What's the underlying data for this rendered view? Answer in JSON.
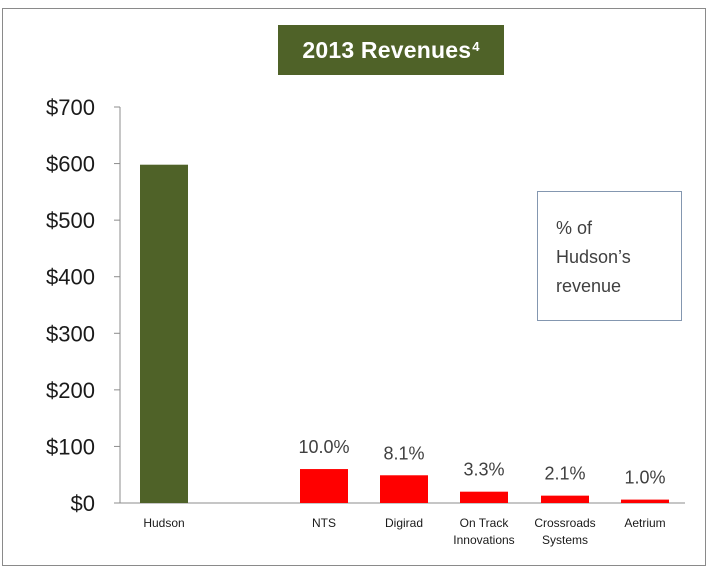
{
  "chart_data": {
    "type": "bar",
    "title": "2013 Revenues",
    "title_superscript": "4",
    "categories": [
      "Hudson",
      "NTS",
      "Digirad",
      "On Track Innovations",
      "Crossroads Systems",
      "Aetrium"
    ],
    "category_lines": [
      [
        "Hudson"
      ],
      [
        "NTS"
      ],
      [
        "Digirad"
      ],
      [
        "On Track",
        "Innovations"
      ],
      [
        "Crossroads",
        "Systems"
      ],
      [
        "Aetrium"
      ]
    ],
    "values": [
      598,
      60,
      49,
      20,
      13,
      6
    ],
    "data_labels": [
      "",
      "10.0%",
      "8.1%",
      "3.3%",
      "2.1%",
      "1.0%"
    ],
    "bar_colors": [
      "#4f6228",
      "#ff0000",
      "#ff0000",
      "#ff0000",
      "#ff0000",
      "#ff0000"
    ],
    "y_ticks": [
      "$0",
      "$100",
      "$200",
      "$300",
      "$400",
      "$500",
      "$600",
      "$700"
    ],
    "ylim": [
      0,
      700
    ],
    "grid": false,
    "legend_box_lines": [
      "% of",
      "Hudson’s",
      "revenue"
    ],
    "legend_placement": "right",
    "xlabel": "",
    "ylabel": ""
  }
}
